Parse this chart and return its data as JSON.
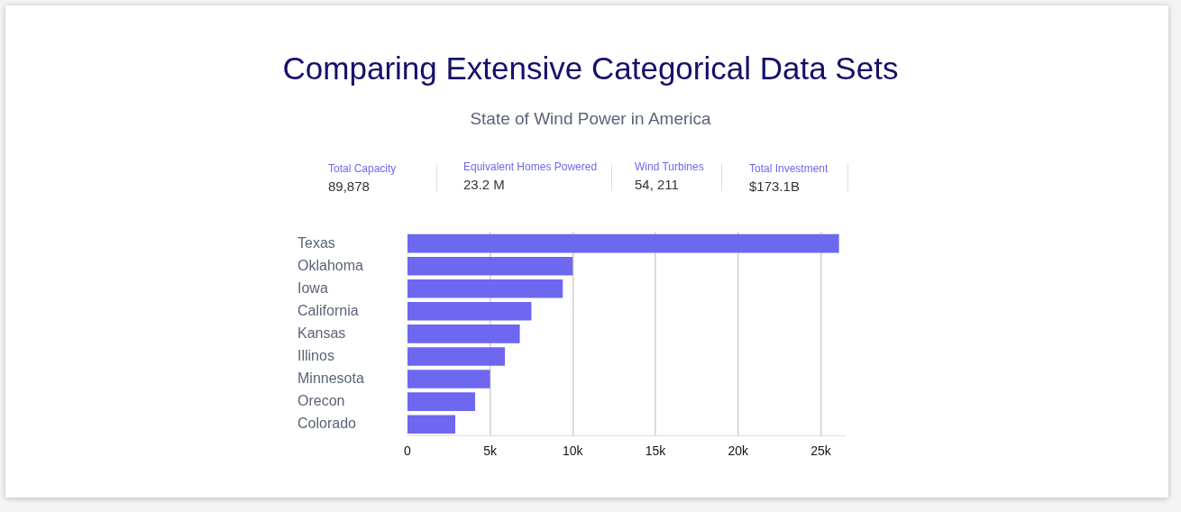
{
  "chart_data": {
    "type": "bar",
    "orientation": "horizontal",
    "title": "Comparing Extensive Categorical Data Sets",
    "subtitle": "State of Wind Power in America",
    "annotations": [
      "Total Capacity",
      "89,878",
      "Equivalent Homes Powered",
      "23.2 M",
      "Wind Turbines",
      "54, 211",
      "Total Investment",
      "$173.1B"
    ],
    "categories": [
      "Texas",
      "Oklahoma",
      "Iowa",
      "California",
      "Kansas",
      "Illinos",
      "Minnesota",
      "Orecon",
      "Colorado"
    ],
    "values": [
      26100,
      10000,
      9400,
      7500,
      6800,
      5900,
      5000,
      4100,
      2900
    ],
    "color": "#6e67f0",
    "xlim": [
      0,
      26500
    ],
    "xticks": [
      {
        "value": 0,
        "label": "0"
      },
      {
        "value": 5000,
        "label": "5k"
      },
      {
        "value": 10000,
        "label": "10k"
      },
      {
        "value": 15000,
        "label": "15k"
      },
      {
        "value": 20000,
        "label": "20k"
      },
      {
        "value": 25000,
        "label": "25k"
      }
    ],
    "grid": "x",
    "legend": false
  }
}
